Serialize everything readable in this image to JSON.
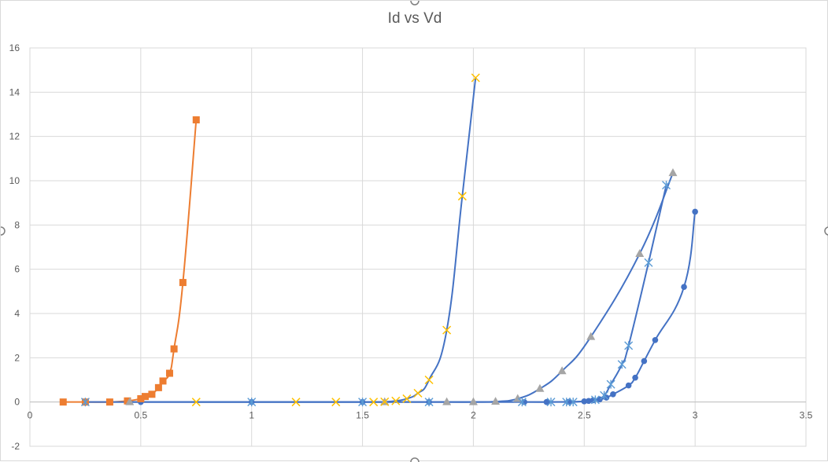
{
  "chart_data": {
    "type": "scatter",
    "title": "Id vs Vd",
    "xlabel": "",
    "ylabel": "",
    "xlim": [
      0,
      3.5
    ],
    "ylim": [
      -2,
      16
    ],
    "xticks": [
      0,
      0.5,
      1,
      1.5,
      2,
      2.5,
      3,
      3.5
    ],
    "yticks": [
      -2,
      0,
      2,
      4,
      6,
      8,
      10,
      12,
      14,
      16
    ],
    "xtick_labels": [
      "0",
      "0.5",
      "1",
      "1.5",
      "2",
      "2.5",
      "3",
      "3.5"
    ],
    "ytick_labels": [
      "-2",
      "0",
      "2",
      "4",
      "6",
      "8",
      "10",
      "12",
      "14",
      "16"
    ],
    "grid": true,
    "legend": "none",
    "series": [
      {
        "marker": "circle",
        "marker_color": "#4472C4",
        "line_color": "#4472C4",
        "x": [
          0.25,
          0.5,
          1.0,
          1.5,
          1.8,
          2.23,
          2.33,
          2.43,
          2.5,
          2.52,
          2.54,
          2.57,
          2.6,
          2.63,
          2.7,
          2.73,
          2.77,
          2.82,
          2.95,
          3.0
        ],
        "y": [
          0,
          0,
          0,
          0,
          0,
          0,
          0,
          0.01,
          0.03,
          0.05,
          0.08,
          0.12,
          0.2,
          0.35,
          0.75,
          1.1,
          1.85,
          2.8,
          5.2,
          8.6
        ]
      },
      {
        "marker": "square",
        "marker_color": "#ED7D31",
        "line_color": "#ED7D31",
        "x": [
          0.15,
          0.25,
          0.36,
          0.44,
          0.5,
          0.52,
          0.55,
          0.58,
          0.6,
          0.63,
          0.65,
          0.69,
          0.75
        ],
        "y": [
          0,
          0,
          0,
          0.05,
          0.15,
          0.25,
          0.35,
          0.65,
          0.95,
          1.3,
          2.4,
          5.4,
          12.75
        ]
      },
      {
        "marker": "triangle",
        "marker_color": "#A5A5A5",
        "line_color": "#4472C4",
        "x": [
          0.45,
          1.6,
          1.88,
          2.0,
          2.1,
          2.2,
          2.3,
          2.4,
          2.53,
          2.75,
          2.9
        ],
        "y": [
          0,
          0,
          0,
          0,
          0.02,
          0.15,
          0.6,
          1.4,
          2.95,
          6.7,
          10.35
        ]
      },
      {
        "marker": "x",
        "marker_color": "#FFC000",
        "line_color": "#4472C4",
        "x": [
          0.75,
          1.2,
          1.38,
          1.55,
          1.6,
          1.65,
          1.7,
          1.75,
          1.8,
          1.88,
          1.95,
          2.01
        ],
        "y": [
          0,
          0,
          0,
          0,
          0.01,
          0.05,
          0.15,
          0.4,
          1.0,
          3.25,
          9.3,
          14.65
        ]
      },
      {
        "marker": "star",
        "marker_color": "#5B9BD5",
        "line_color": "#4472C4",
        "x": [
          0.25,
          1.0,
          1.5,
          1.8,
          2.22,
          2.35,
          2.42,
          2.45,
          2.55,
          2.59,
          2.62,
          2.67,
          2.7,
          2.79,
          2.87
        ],
        "y": [
          0,
          0,
          0,
          0,
          0,
          0,
          0,
          0,
          0.1,
          0.3,
          0.8,
          1.7,
          2.55,
          6.3,
          9.8
        ]
      }
    ]
  }
}
